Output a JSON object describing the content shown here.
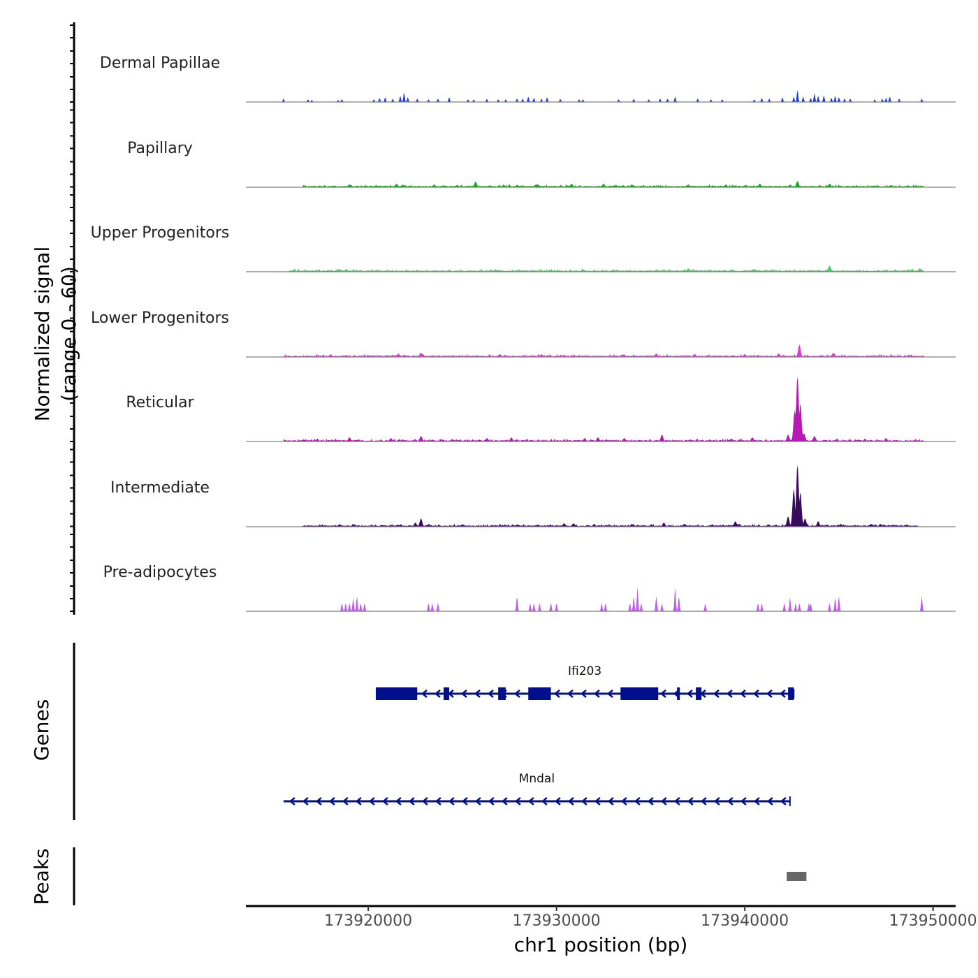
{
  "chart_data": {
    "type": "area",
    "y_axis_label_line1": "Normalized signal",
    "y_axis_label_line2": "(range 0 - 60)",
    "ylim": [
      0,
      60
    ],
    "x_axis_label": "chr1 position (bp)",
    "xlim": [
      173913500,
      173951200
    ],
    "x_ticks": [
      "173920000",
      "173930000",
      "173940000",
      "173950000"
    ],
    "x_tick_values": [
      173920000,
      173930000,
      173940000,
      173950000
    ],
    "tracks": [
      {
        "name": "Dermal Papillae",
        "color": "#1e3fd8",
        "mode": "sparse",
        "peaks": [
          [
            173915500,
            5
          ],
          [
            173916800,
            4
          ],
          [
            173917000,
            3
          ],
          [
            173918400,
            3
          ],
          [
            173918600,
            4
          ],
          [
            173920300,
            4
          ],
          [
            173920600,
            6
          ],
          [
            173920900,
            7
          ],
          [
            173921300,
            5
          ],
          [
            173921700,
            9
          ],
          [
            173921900,
            14
          ],
          [
            173922100,
            7
          ],
          [
            173922600,
            5
          ],
          [
            173923200,
            4
          ],
          [
            173923700,
            5
          ],
          [
            173924300,
            7
          ],
          [
            173925300,
            4
          ],
          [
            173925600,
            4
          ],
          [
            173926300,
            5
          ],
          [
            173926900,
            4
          ],
          [
            173927300,
            4
          ],
          [
            173927900,
            5
          ],
          [
            173928200,
            5
          ],
          [
            173928500,
            8
          ],
          [
            173928800,
            6
          ],
          [
            173929200,
            5
          ],
          [
            173929500,
            7
          ],
          [
            173930200,
            5
          ],
          [
            173931200,
            4
          ],
          [
            173931400,
            4
          ],
          [
            173933300,
            4
          ],
          [
            173934100,
            5
          ],
          [
            173934900,
            4
          ],
          [
            173935500,
            5
          ],
          [
            173935900,
            5
          ],
          [
            173936300,
            8
          ],
          [
            173937500,
            5
          ],
          [
            173938200,
            4
          ],
          [
            173938800,
            4
          ],
          [
            173940500,
            4
          ],
          [
            173940900,
            6
          ],
          [
            173941300,
            5
          ],
          [
            173942000,
            7
          ],
          [
            173942600,
            8
          ],
          [
            173942800,
            18
          ],
          [
            173943100,
            8
          ],
          [
            173943500,
            6
          ],
          [
            173943700,
            13
          ],
          [
            173943900,
            9
          ],
          [
            173944200,
            10
          ],
          [
            173944600,
            6
          ],
          [
            173944800,
            9
          ],
          [
            173945000,
            7
          ],
          [
            173945300,
            5
          ],
          [
            173945600,
            5
          ],
          [
            173946900,
            4
          ],
          [
            173947300,
            5
          ],
          [
            173947500,
            6
          ],
          [
            173947700,
            8
          ],
          [
            173948200,
            5
          ],
          [
            173949400,
            5
          ]
        ]
      },
      {
        "name": "Papillary",
        "color": "#17a81b",
        "mode": "dense",
        "start": 173916500,
        "end": 173949500,
        "peaks": [
          [
            173919000,
            4
          ],
          [
            173921500,
            5
          ],
          [
            173923500,
            4
          ],
          [
            173925700,
            8
          ],
          [
            173929000,
            4
          ],
          [
            173930800,
            5
          ],
          [
            173932500,
            5
          ],
          [
            173934000,
            4
          ],
          [
            173937000,
            4
          ],
          [
            173939000,
            4
          ],
          [
            173940800,
            5
          ],
          [
            173942800,
            9
          ],
          [
            173944500,
            5
          ]
        ]
      },
      {
        "name": "Upper Progenitors",
        "color": "#45cf5e",
        "mode": "dense",
        "start": 173915800,
        "end": 173949500,
        "peaks": [
          [
            173920500,
            3
          ],
          [
            173928000,
            3
          ],
          [
            173933000,
            3
          ],
          [
            173935700,
            3
          ],
          [
            173937000,
            5
          ],
          [
            173939300,
            3
          ],
          [
            173940500,
            4
          ],
          [
            173944500,
            9
          ],
          [
            173948900,
            4
          ],
          [
            173949300,
            5
          ]
        ]
      },
      {
        "name": "Lower Progenitors",
        "color": "#e436d8",
        "mode": "dense",
        "start": 173915500,
        "end": 173949500,
        "peaks": [
          [
            173918000,
            4
          ],
          [
            173921600,
            5
          ],
          [
            173922800,
            6
          ],
          [
            173927000,
            4
          ],
          [
            173929200,
            4
          ],
          [
            173933500,
            4
          ],
          [
            173935300,
            5
          ],
          [
            173940000,
            4
          ],
          [
            173941800,
            5
          ],
          [
            173942900,
            18
          ],
          [
            173944700,
            6
          ]
        ]
      },
      {
        "name": "Reticular",
        "color": "#b51ab5",
        "mode": "dense",
        "start": 173915500,
        "end": 173949500,
        "peaks": [
          [
            173917300,
            4
          ],
          [
            173919000,
            6
          ],
          [
            173921200,
            5
          ],
          [
            173922800,
            8
          ],
          [
            173926300,
            5
          ],
          [
            173927600,
            6
          ],
          [
            173931500,
            5
          ],
          [
            173932200,
            6
          ],
          [
            173933600,
            5
          ],
          [
            173935600,
            10
          ],
          [
            173939300,
            4
          ],
          [
            173940400,
            6
          ],
          [
            173942300,
            10
          ],
          [
            173942650,
            45
          ],
          [
            173942800,
            95
          ],
          [
            173942950,
            55
          ],
          [
            173943150,
            12
          ],
          [
            173943700,
            8
          ],
          [
            173944900,
            4
          ],
          [
            173947500,
            5
          ]
        ]
      },
      {
        "name": "Intermediate",
        "color": "#3a0a5c",
        "mode": "dense",
        "start": 173916500,
        "end": 173949200,
        "peaks": [
          [
            173918500,
            3
          ],
          [
            173921600,
            3
          ],
          [
            173922500,
            6
          ],
          [
            173922800,
            12
          ],
          [
            173925000,
            3
          ],
          [
            173929000,
            3
          ],
          [
            173930400,
            5
          ],
          [
            173930900,
            5
          ],
          [
            173932000,
            4
          ],
          [
            173934000,
            4
          ],
          [
            173935700,
            6
          ],
          [
            173936800,
            4
          ],
          [
            173939500,
            8
          ],
          [
            173941300,
            3
          ],
          [
            173942300,
            15
          ],
          [
            173942600,
            55
          ],
          [
            173942800,
            90
          ],
          [
            173942950,
            50
          ],
          [
            173943200,
            12
          ],
          [
            173943900,
            8
          ],
          [
            173945100,
            4
          ],
          [
            173946700,
            4
          ],
          [
            173947200,
            4
          ],
          [
            173948600,
            3
          ]
        ]
      },
      {
        "name": "Pre-adipocytes",
        "color": "#c35bf0",
        "mode": "sparse",
        "peaks": [
          [
            173918600,
            12
          ],
          [
            173918800,
            12
          ],
          [
            173919000,
            12
          ],
          [
            173919200,
            20
          ],
          [
            173919400,
            22
          ],
          [
            173919600,
            12
          ],
          [
            173919800,
            12
          ],
          [
            173923200,
            12
          ],
          [
            173923400,
            12
          ],
          [
            173923700,
            12
          ],
          [
            173927900,
            22
          ],
          [
            173928600,
            12
          ],
          [
            173928800,
            12
          ],
          [
            173929100,
            12
          ],
          [
            173929700,
            12
          ],
          [
            173930000,
            12
          ],
          [
            173932400,
            12
          ],
          [
            173932600,
            12
          ],
          [
            173933900,
            12
          ],
          [
            173934100,
            22
          ],
          [
            173934300,
            35
          ],
          [
            173934500,
            12
          ],
          [
            173935300,
            22
          ],
          [
            173935600,
            12
          ],
          [
            173936300,
            35
          ],
          [
            173936500,
            22
          ],
          [
            173937900,
            12
          ],
          [
            173940700,
            12
          ],
          [
            173940900,
            12
          ],
          [
            173942100,
            12
          ],
          [
            173942400,
            12
          ],
          [
            173942700,
            12
          ],
          [
            173942900,
            12
          ],
          [
            173942400,
            20
          ],
          [
            173943400,
            12
          ],
          [
            173943500,
            12
          ],
          [
            173944500,
            12
          ],
          [
            173944800,
            20
          ],
          [
            173945000,
            22
          ],
          [
            173949400,
            22
          ]
        ]
      }
    ],
    "genes": [
      {
        "name": "Ifi203",
        "color": "#000f8a",
        "start": 173920400,
        "end": 173942600,
        "strand": "-",
        "exons": [
          [
            173920400,
            173922600
          ],
          [
            173924000,
            173924300
          ],
          [
            173926900,
            173927300
          ],
          [
            173928500,
            173929700
          ],
          [
            173933400,
            173935400
          ],
          [
            173936400,
            173936500
          ],
          [
            173937400,
            173937700
          ],
          [
            173942300,
            173942600
          ]
        ]
      },
      {
        "name": "Mndal",
        "color": "#000f8a",
        "start": 173915500,
        "end": 173942400,
        "strand": "-",
        "exons": []
      }
    ],
    "genes_label": "Genes",
    "peaks_label": "Peaks",
    "peak_regions": [
      [
        173942300,
        173943200
      ]
    ],
    "peak_color": "#666666"
  }
}
